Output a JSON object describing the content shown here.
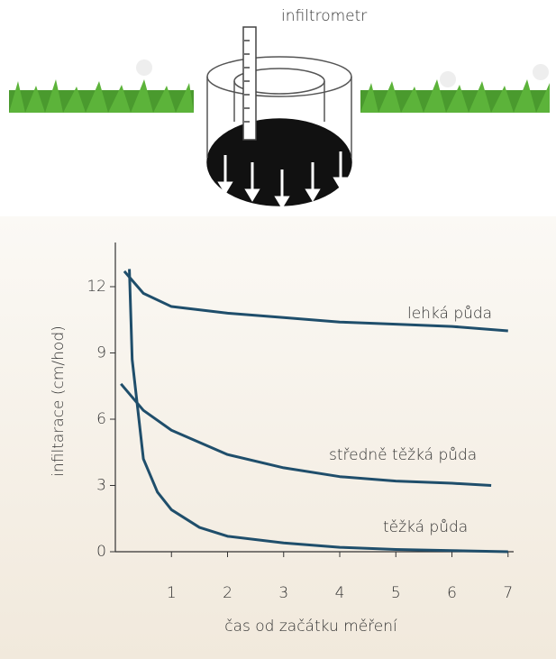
{
  "illustration": {
    "label": "infiltrometr"
  },
  "chart_data": {
    "type": "line",
    "xlabel": "čas od začátku měření",
    "ylabel": "infiltarace (cm/hod)",
    "xlim": [
      0,
      7.1
    ],
    "xticks": [
      1,
      2,
      3,
      4,
      5,
      6,
      7
    ],
    "ylim": [
      0,
      14
    ],
    "yticks": [
      0,
      3,
      6,
      9,
      12
    ],
    "series": [
      {
        "name": "lehká půda",
        "color": "#1f4e6b",
        "x": [
          0.16,
          0.5,
          1,
          2,
          3,
          4,
          5,
          6,
          7
        ],
        "values": [
          12.7,
          11.7,
          11.1,
          10.8,
          10.6,
          10.4,
          10.3,
          10.2,
          10.0
        ]
      },
      {
        "name": "středně těžká půda",
        "color": "#1f4e6b",
        "x": [
          0.1,
          0.5,
          1,
          2,
          3,
          4,
          5,
          6,
          6.7
        ],
        "values": [
          7.6,
          6.4,
          5.5,
          4.4,
          3.8,
          3.4,
          3.2,
          3.1,
          3.0
        ]
      },
      {
        "name": "těžká půda",
        "color": "#1f4e6b",
        "x": [
          0.25,
          0.3,
          0.5,
          0.75,
          1,
          1.5,
          2,
          3,
          4,
          5,
          6,
          7
        ],
        "values": [
          12.8,
          8.7,
          4.2,
          2.7,
          1.9,
          1.1,
          0.7,
          0.4,
          0.2,
          0.1,
          0.05,
          0
        ]
      }
    ]
  }
}
